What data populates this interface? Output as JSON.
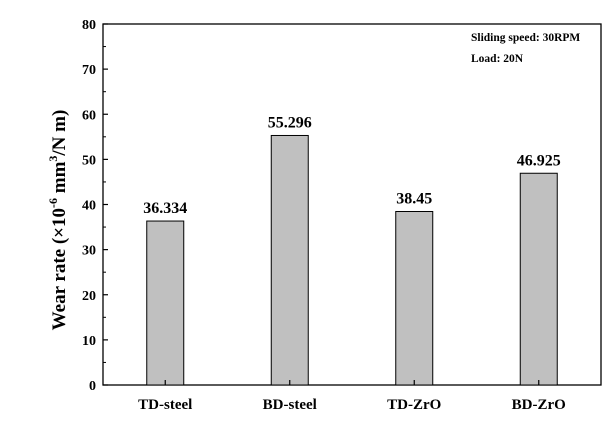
{
  "chart_data": {
    "type": "bar",
    "categories": [
      "TD-steel",
      "BD-steel",
      "TD-ZrO",
      "BD-ZrO"
    ],
    "values": [
      36.334,
      55.296,
      38.45,
      46.925
    ],
    "data_labels": [
      "36.334",
      "55.296",
      "38.45",
      "46.925"
    ],
    "title": "",
    "xlabel": "",
    "ylabel": {
      "prefix": "Wear rate (×10",
      "sup1": "-6",
      "mid": " mm",
      "sup2": "3",
      "suffix": "/N m)"
    },
    "ylim": [
      0,
      80
    ],
    "yticks": [
      0,
      10,
      20,
      30,
      40,
      50,
      60,
      70,
      80
    ],
    "annotations": [
      "Sliding speed: 30RPM",
      "Load: 20N"
    ],
    "bar_color": "#c0c0c0",
    "grid": false,
    "legend": "none"
  }
}
